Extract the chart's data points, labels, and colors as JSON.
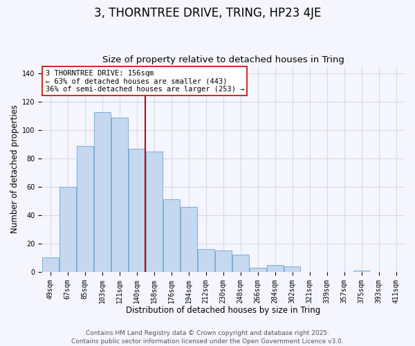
{
  "title": "3, THORNTREE DRIVE, TRING, HP23 4JE",
  "subtitle": "Size of property relative to detached houses in Tring",
  "xlabel": "Distribution of detached houses by size in Tring",
  "ylabel": "Number of detached properties",
  "bar_color": "#c5d8f0",
  "bar_edge_color": "#7badd4",
  "categories": [
    "49sqm",
    "67sqm",
    "85sqm",
    "103sqm",
    "121sqm",
    "140sqm",
    "158sqm",
    "176sqm",
    "194sqm",
    "212sqm",
    "230sqm",
    "248sqm",
    "266sqm",
    "284sqm",
    "302sqm",
    "321sqm",
    "339sqm",
    "357sqm",
    "375sqm",
    "393sqm",
    "411sqm"
  ],
  "values": [
    10,
    60,
    89,
    113,
    109,
    87,
    85,
    51,
    46,
    16,
    15,
    12,
    3,
    5,
    4,
    0,
    0,
    0,
    1,
    0,
    0
  ],
  "vline_color": "#cc0000",
  "ylim": [
    0,
    145
  ],
  "yticks": [
    0,
    20,
    40,
    60,
    80,
    100,
    120,
    140
  ],
  "annotation_title": "3 THORNTREE DRIVE: 156sqm",
  "annotation_line1": "← 63% of detached houses are smaller (443)",
  "annotation_line2": "36% of semi-detached houses are larger (253) →",
  "footer_line1": "Contains HM Land Registry data © Crown copyright and database right 2025.",
  "footer_line2": "Contains public sector information licensed under the Open Government Licence v3.0.",
  "background_color": "#f5f5ff",
  "grid_color": "#d8d8e8",
  "title_fontsize": 12,
  "subtitle_fontsize": 9.5,
  "label_fontsize": 8.5,
  "tick_fontsize": 7,
  "footer_fontsize": 6.5
}
